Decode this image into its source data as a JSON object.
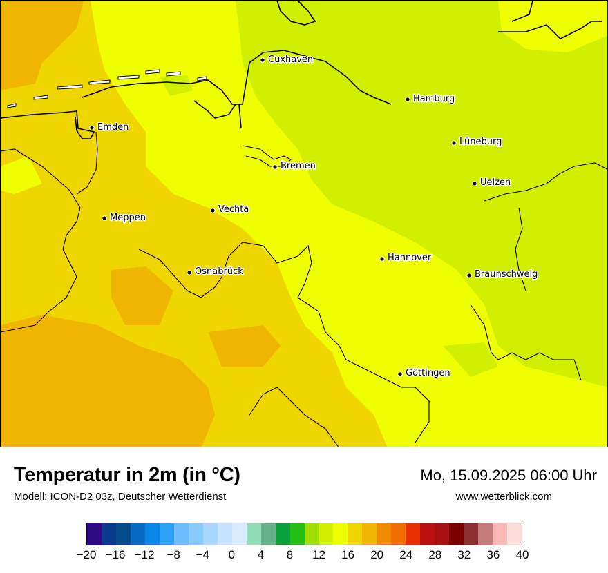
{
  "title": "Temperatur in 2m (in °C)",
  "model": "Modell: ICON-D2 03z, Deutscher Wetterdienst",
  "datetime": "Mo, 15.09.2025 06:00 Uhr",
  "website": "www.wetterblick.com",
  "cities": [
    "Cuxhaven",
    "Hamburg",
    "Emden",
    "Lüneburg",
    "Bremen",
    "Uelzen",
    "Vechta",
    "Meppen",
    "Hannover",
    "Osnabrück",
    "Braunschweig",
    "Göttingen"
  ],
  "colorbar": {
    "colors": [
      "#2e0a85",
      "#0a3a8c",
      "#044a8a",
      "#0669c2",
      "#0a86e6",
      "#2aa0f7",
      "#6dbcfb",
      "#8ac9fc",
      "#a9d6fd",
      "#c6e3fd",
      "#d8ebfd",
      "#92dbb9",
      "#65b28d",
      "#0aa13a",
      "#23bd13",
      "#a2dd00",
      "#d0f000",
      "#f0ff00",
      "#f0d600",
      "#f0b500",
      "#f08a00",
      "#f06c00",
      "#e83000",
      "#b91010",
      "#a80f12",
      "#7a0000",
      "#8b3030",
      "#c47b79",
      "#fbb8b5",
      "#fddcdc"
    ],
    "tick_labels": [
      "−20",
      "−16",
      "−12",
      "−8",
      "−4",
      "0",
      "4",
      "8",
      "12",
      "16",
      "20",
      "24",
      "28",
      "32",
      "36",
      "40"
    ]
  },
  "legend_colors": {
    "t_14": "#d0f000",
    "t_16": "#f0ff00",
    "t_18": "#f0d600",
    "t_20": "#f0b500"
  }
}
